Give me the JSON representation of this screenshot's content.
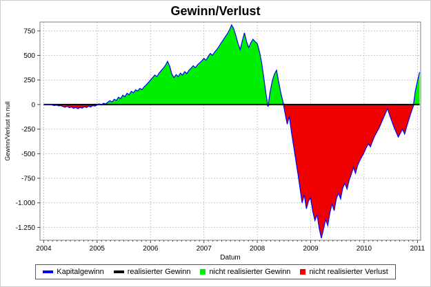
{
  "chart_data": {
    "type": "area",
    "title": "Gewinn/Verlust",
    "xlabel": "Datum",
    "ylabel": "Gewinn/Verlust in null",
    "xlim": [
      2003.93,
      2011.06
    ],
    "ylim": [
      -1380,
      840
    ],
    "x_ticks": [
      2004,
      2005,
      2006,
      2007,
      2008,
      2009,
      2010,
      2011
    ],
    "y_ticks": [
      750,
      500,
      250,
      0,
      -250,
      -500,
      -750,
      -1000,
      -1250
    ],
    "y_tick_labels": [
      "750",
      "500",
      "250",
      "0",
      "-250",
      "-500",
      "-750",
      "-1.000",
      "-1.250"
    ],
    "grid_color": "#c4c4c4",
    "axis_color": "#808080",
    "tick_color": "#444444",
    "series": [
      {
        "name": "Kapitalgewinn",
        "color": "#0000ff",
        "points": [
          [
            2004.0,
            0
          ],
          [
            2004.04,
            3
          ],
          [
            2004.08,
            -3
          ],
          [
            2004.12,
            4
          ],
          [
            2004.16,
            -5
          ],
          [
            2004.2,
            -10
          ],
          [
            2004.24,
            -6
          ],
          [
            2004.28,
            -14
          ],
          [
            2004.32,
            -10
          ],
          [
            2004.36,
            -20
          ],
          [
            2004.4,
            -28
          ],
          [
            2004.44,
            -18
          ],
          [
            2004.48,
            -32
          ],
          [
            2004.52,
            -24
          ],
          [
            2004.56,
            -38
          ],
          [
            2004.6,
            -30
          ],
          [
            2004.64,
            -42
          ],
          [
            2004.68,
            -30
          ],
          [
            2004.72,
            -36
          ],
          [
            2004.76,
            -22
          ],
          [
            2004.8,
            -30
          ],
          [
            2004.84,
            -16
          ],
          [
            2004.88,
            -24
          ],
          [
            2004.92,
            -10
          ],
          [
            2004.96,
            -16
          ],
          [
            2005.0,
            -4
          ],
          [
            2005.04,
            8
          ],
          [
            2005.08,
            -6
          ],
          [
            2005.12,
            14
          ],
          [
            2005.16,
            6
          ],
          [
            2005.2,
            24
          ],
          [
            2005.24,
            40
          ],
          [
            2005.28,
            26
          ],
          [
            2005.32,
            55
          ],
          [
            2005.36,
            42
          ],
          [
            2005.4,
            75
          ],
          [
            2005.44,
            60
          ],
          [
            2005.48,
            95
          ],
          [
            2005.52,
            80
          ],
          [
            2005.56,
            115
          ],
          [
            2005.6,
            100
          ],
          [
            2005.64,
            135
          ],
          [
            2005.68,
            120
          ],
          [
            2005.72,
            150
          ],
          [
            2005.76,
            138
          ],
          [
            2005.8,
            165
          ],
          [
            2005.84,
            152
          ],
          [
            2005.88,
            180
          ],
          [
            2005.92,
            200
          ],
          [
            2005.96,
            225
          ],
          [
            2006.0,
            250
          ],
          [
            2006.04,
            275
          ],
          [
            2006.08,
            300
          ],
          [
            2006.12,
            285
          ],
          [
            2006.16,
            320
          ],
          [
            2006.2,
            345
          ],
          [
            2006.24,
            370
          ],
          [
            2006.28,
            400
          ],
          [
            2006.32,
            440
          ],
          [
            2006.36,
            390
          ],
          [
            2006.4,
            310
          ],
          [
            2006.44,
            275
          ],
          [
            2006.48,
            305
          ],
          [
            2006.52,
            285
          ],
          [
            2006.56,
            320
          ],
          [
            2006.6,
            300
          ],
          [
            2006.64,
            335
          ],
          [
            2006.68,
            315
          ],
          [
            2006.72,
            350
          ],
          [
            2006.76,
            370
          ],
          [
            2006.8,
            395
          ],
          [
            2006.84,
            375
          ],
          [
            2006.88,
            405
          ],
          [
            2006.92,
            425
          ],
          [
            2006.96,
            445
          ],
          [
            2007.0,
            470
          ],
          [
            2007.04,
            450
          ],
          [
            2007.08,
            490
          ],
          [
            2007.12,
            520
          ],
          [
            2007.16,
            500
          ],
          [
            2007.2,
            535
          ],
          [
            2007.24,
            560
          ],
          [
            2007.28,
            590
          ],
          [
            2007.32,
            625
          ],
          [
            2007.36,
            655
          ],
          [
            2007.4,
            690
          ],
          [
            2007.44,
            720
          ],
          [
            2007.48,
            760
          ],
          [
            2007.52,
            810
          ],
          [
            2007.56,
            770
          ],
          [
            2007.6,
            700
          ],
          [
            2007.64,
            620
          ],
          [
            2007.68,
            560
          ],
          [
            2007.72,
            650
          ],
          [
            2007.76,
            730
          ],
          [
            2007.8,
            640
          ],
          [
            2007.84,
            580
          ],
          [
            2007.88,
            630
          ],
          [
            2007.92,
            665
          ],
          [
            2007.96,
            640
          ],
          [
            2008.0,
            620
          ],
          [
            2008.04,
            540
          ],
          [
            2008.08,
            430
          ],
          [
            2008.12,
            280
          ],
          [
            2008.16,
            120
          ],
          [
            2008.2,
            -20
          ],
          [
            2008.24,
            130
          ],
          [
            2008.28,
            240
          ],
          [
            2008.32,
            310
          ],
          [
            2008.36,
            350
          ],
          [
            2008.4,
            230
          ],
          [
            2008.44,
            120
          ],
          [
            2008.48,
            30
          ],
          [
            2008.52,
            -90
          ],
          [
            2008.56,
            -200
          ],
          [
            2008.6,
            -120
          ],
          [
            2008.64,
            -280
          ],
          [
            2008.68,
            -420
          ],
          [
            2008.72,
            -560
          ],
          [
            2008.76,
            -700
          ],
          [
            2008.8,
            -850
          ],
          [
            2008.84,
            -1000
          ],
          [
            2008.88,
            -920
          ],
          [
            2008.92,
            -1060
          ],
          [
            2008.96,
            -980
          ],
          [
            2009.0,
            -950
          ],
          [
            2009.04,
            -1090
          ],
          [
            2009.08,
            -1180
          ],
          [
            2009.12,
            -1120
          ],
          [
            2009.16,
            -1260
          ],
          [
            2009.2,
            -1360
          ],
          [
            2009.24,
            -1270
          ],
          [
            2009.28,
            -1170
          ],
          [
            2009.32,
            -1230
          ],
          [
            2009.36,
            -1100
          ],
          [
            2009.4,
            -1010
          ],
          [
            2009.44,
            -1080
          ],
          [
            2009.48,
            -960
          ],
          [
            2009.52,
            -900
          ],
          [
            2009.56,
            -960
          ],
          [
            2009.6,
            -850
          ],
          [
            2009.64,
            -800
          ],
          [
            2009.68,
            -860
          ],
          [
            2009.72,
            -770
          ],
          [
            2009.76,
            -710
          ],
          [
            2009.8,
            -640
          ],
          [
            2009.84,
            -700
          ],
          [
            2009.88,
            -620
          ],
          [
            2009.92,
            -570
          ],
          [
            2009.96,
            -530
          ],
          [
            2010.0,
            -490
          ],
          [
            2010.04,
            -440
          ],
          [
            2010.08,
            -400
          ],
          [
            2010.12,
            -430
          ],
          [
            2010.16,
            -370
          ],
          [
            2010.2,
            -320
          ],
          [
            2010.24,
            -280
          ],
          [
            2010.28,
            -240
          ],
          [
            2010.32,
            -190
          ],
          [
            2010.36,
            -140
          ],
          [
            2010.4,
            -90
          ],
          [
            2010.44,
            -40
          ],
          [
            2010.48,
            -110
          ],
          [
            2010.52,
            -170
          ],
          [
            2010.56,
            -230
          ],
          [
            2010.6,
            -280
          ],
          [
            2010.64,
            -330
          ],
          [
            2010.68,
            -290
          ],
          [
            2010.72,
            -250
          ],
          [
            2010.76,
            -300
          ],
          [
            2010.8,
            -220
          ],
          [
            2010.84,
            -150
          ],
          [
            2010.88,
            -80
          ],
          [
            2010.92,
            -20
          ],
          [
            2010.96,
            140
          ],
          [
            2011.0,
            240
          ],
          [
            2011.04,
            330
          ]
        ]
      },
      {
        "name": "realisierter Gewinn",
        "color": "#000000",
        "points": [
          [
            2004.0,
            0
          ],
          [
            2011.04,
            0
          ]
        ]
      }
    ],
    "fills": {
      "positive": {
        "name": "nicht realisierter Gewinn",
        "color": "#00ee00"
      },
      "negative": {
        "name": "nicht realisierter Verlust",
        "color": "#ee0000"
      }
    }
  },
  "legend": {
    "items": [
      {
        "label": "Kapitalgewinn",
        "color": "#0000ff",
        "swatch": "line"
      },
      {
        "label": "realisierter Gewinn",
        "color": "#000000",
        "swatch": "line"
      },
      {
        "label": "nicht realisierter Gewinn",
        "color": "#00ee00",
        "swatch": "rect"
      },
      {
        "label": "nicht realisierter Verlust",
        "color": "#ee0000",
        "swatch": "rect"
      }
    ]
  }
}
